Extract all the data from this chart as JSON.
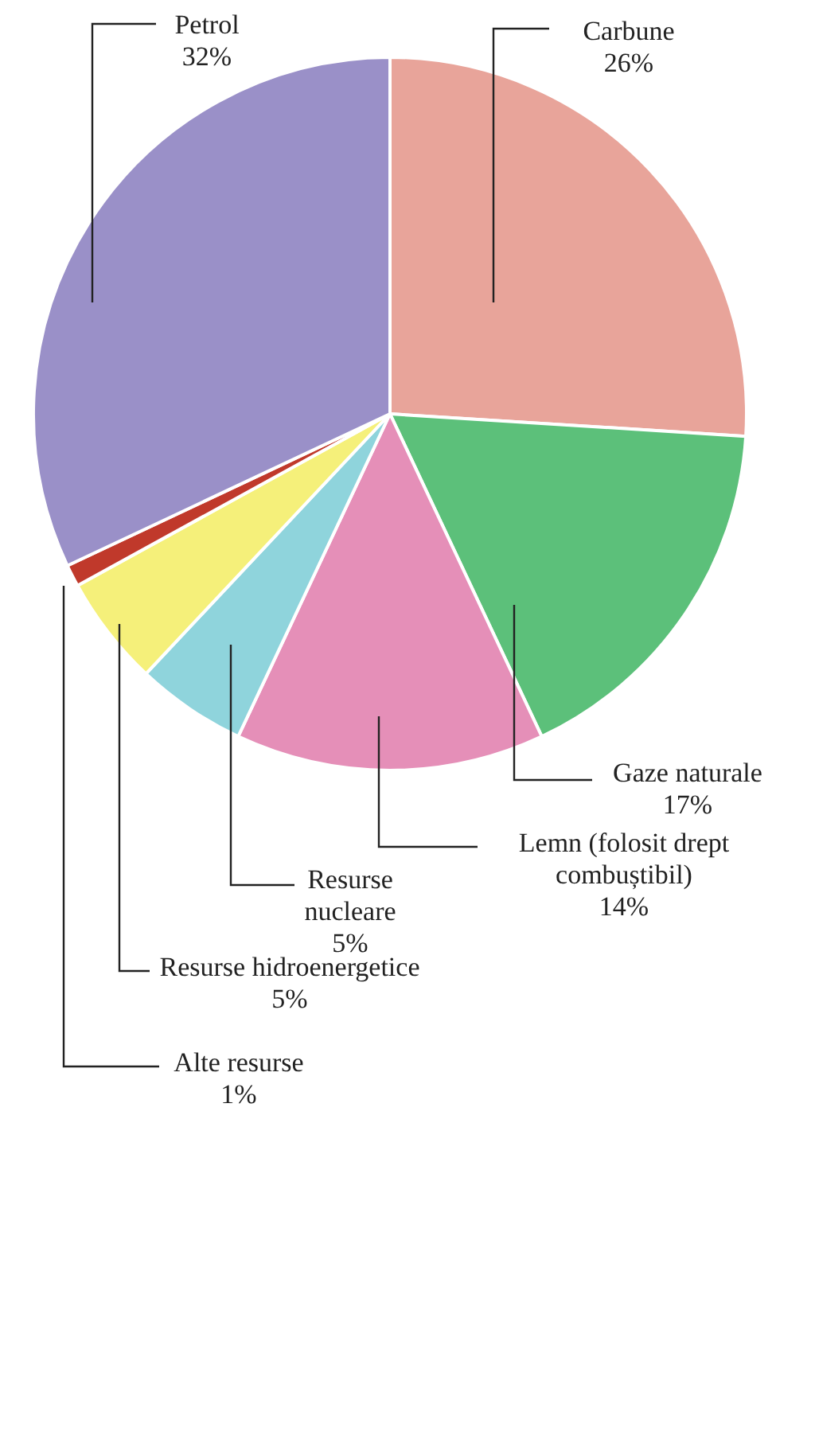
{
  "chart_data": {
    "type": "pie",
    "categories": [
      "Carbune",
      "Gaze naturale",
      "Lemn (folosit drept combuștibil)",
      "Resurse nucleare",
      "Resurse hidroenergetice",
      "Alte resurse",
      "Petrol"
    ],
    "values": [
      26,
      17,
      14,
      5,
      5,
      1,
      32
    ],
    "value_labels": [
      "26%",
      "17%",
      "14%",
      "5%",
      "5%",
      "1%",
      "32%"
    ],
    "colors": [
      "#e8a49a",
      "#5cc07a",
      "#e58fb8",
      "#8fd4dc",
      "#f5f07a",
      "#c0392b",
      "#9a90c8"
    ]
  }
}
